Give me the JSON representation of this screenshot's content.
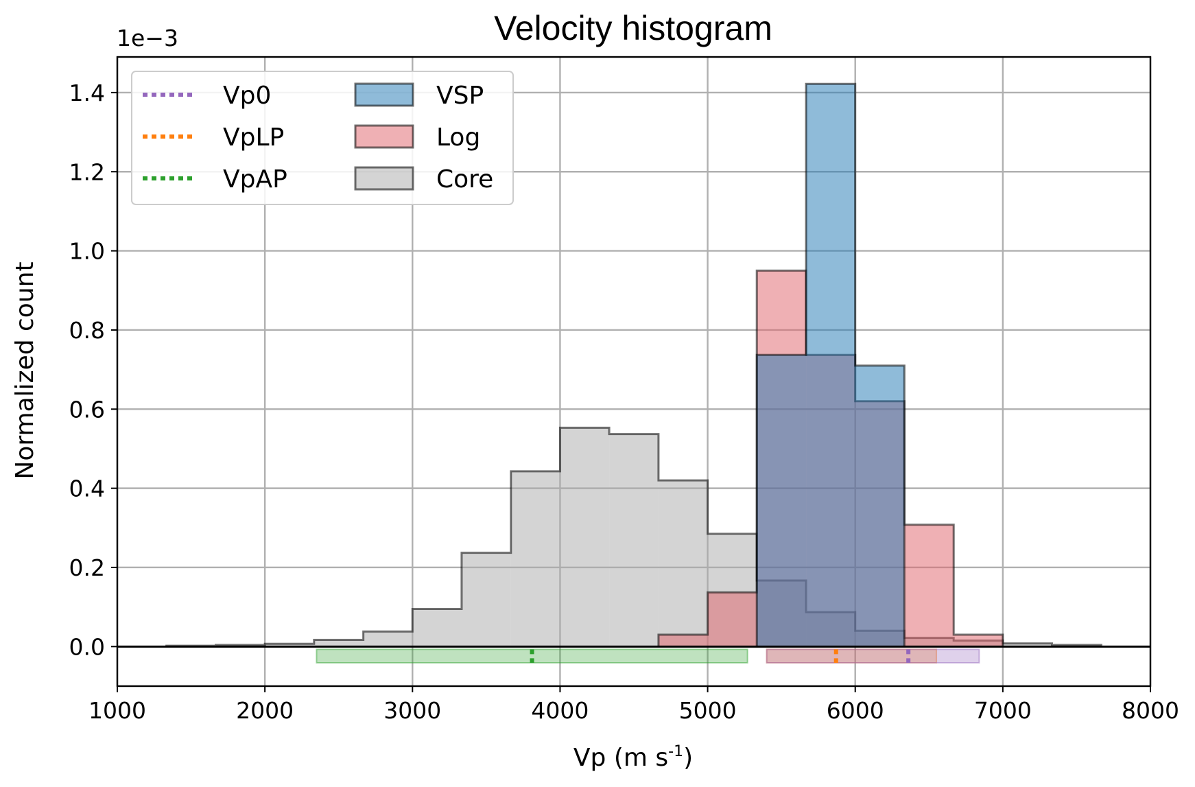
{
  "chart_data": {
    "type": "bar",
    "title": "Velocity histogram",
    "xlabel_base": "Vp (m s",
    "xlabel_sup": "-1",
    "xlabel_close": ")",
    "ylabel": "Normalized count",
    "y_offset_label": "1e−3",
    "xlim": [
      1000,
      8000
    ],
    "ylim": [
      -0.1,
      1.49
    ],
    "x_ticks": [
      "1000",
      "2000",
      "3000",
      "4000",
      "5000",
      "6000",
      "7000",
      "8000"
    ],
    "y_ticks": [
      "0.0",
      "0.2",
      "0.4",
      "0.6",
      "0.8",
      "1.0",
      "1.2",
      "1.4"
    ],
    "grid": true,
    "legend_placement": "top-left",
    "series": [
      {
        "name": "Core",
        "kind": "histogram",
        "color": "#a9a9a9",
        "edges": [
          1333,
          1667,
          2000,
          2333,
          2667,
          3000,
          3333,
          3667,
          4000,
          4333,
          4667,
          5000,
          5333,
          5667,
          6000,
          6333,
          6667,
          7000,
          7333,
          7667
        ],
        "values": [
          0.002,
          0.004,
          0.007,
          0.017,
          0.038,
          0.095,
          0.237,
          0.443,
          0.553,
          0.537,
          0.42,
          0.285,
          0.167,
          0.087,
          0.04,
          0.022,
          0.015,
          0.008,
          0.004
        ]
      },
      {
        "name": "Log",
        "kind": "histogram",
        "color": "#e0616a",
        "edges": [
          4667,
          5000,
          5333,
          5667,
          6000,
          6333,
          6667,
          7000
        ],
        "values": [
          0.03,
          0.137,
          0.95,
          0.737,
          0.62,
          0.308,
          0.03
        ]
      },
      {
        "name": "VSP",
        "kind": "histogram",
        "color": "#1f77b4",
        "edges": [
          5333,
          5667,
          6000,
          6333
        ],
        "values": [
          0.737,
          1.422,
          0.71
        ]
      },
      {
        "name": "Vp0",
        "kind": "range",
        "color": "#9467bd",
        "center": 6360,
        "range": [
          5400,
          6840
        ]
      },
      {
        "name": "VpLP",
        "kind": "range",
        "color": "#ff7f0e",
        "center": 5870,
        "range": [
          5400,
          6550
        ]
      },
      {
        "name": "VpAP",
        "kind": "range",
        "color": "#2ca02c",
        "center": 3810,
        "range": [
          2350,
          5270
        ]
      }
    ],
    "legend_left": [
      "Vp0",
      "VpLP",
      "VpAP"
    ],
    "legend_right": [
      "VSP",
      "Log",
      "Core"
    ]
  }
}
